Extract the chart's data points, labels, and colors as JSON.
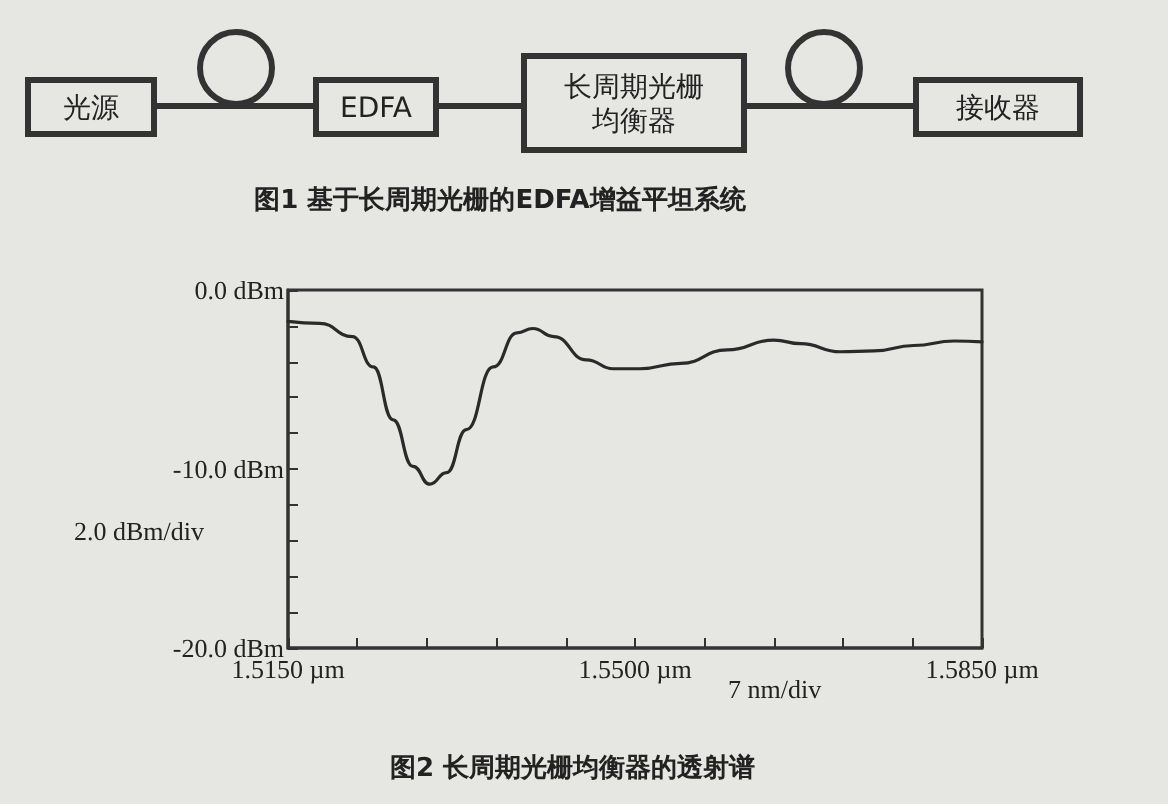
{
  "chart_data": [
    {
      "type": "other",
      "title": "图1 基于长周期光栅的EDFA增益平坦系统",
      "annotations": [
        "光源",
        "EDFA",
        "长周期光栅均衡器",
        "接收器"
      ]
    },
    {
      "type": "line",
      "title": "图2 长周期光栅均衡器的透射谱",
      "annotations": [
        "2.0 dBm/div",
        "7 nm/div"
      ],
      "x": [
        1.515,
        1.5182,
        1.5215,
        1.5236,
        1.5256,
        1.5276,
        1.5293,
        1.531,
        1.533,
        1.5357,
        1.5381,
        1.5397,
        1.5418,
        1.5451,
        1.5478,
        1.5505,
        1.5546,
        1.5593,
        1.564,
        1.5667,
        1.5707,
        1.5741,
        1.5781,
        1.5822,
        1.585
      ],
      "series": [
        {
          "color": "#2a2a2a",
          "values": [
            -1.75,
            -1.86,
            -2.6,
            -4.3,
            -7.25,
            -9.85,
            -10.85,
            -10.2,
            -7.8,
            -4.3,
            -2.4,
            -2.15,
            -2.6,
            -3.9,
            -4.4,
            -4.4,
            -4.1,
            -3.35,
            -2.8,
            -3.0,
            -3.45,
            -3.4,
            -3.1,
            -2.85,
            -2.9
          ]
        }
      ],
      "xlim": [
        1.515,
        1.585
      ],
      "xticks": [
        {
          "value": 1.515,
          "label": "1.5150 µm"
        },
        {
          "value": 1.522,
          "label": null
        },
        {
          "value": 1.529,
          "label": null
        },
        {
          "value": 1.536,
          "label": null
        },
        {
          "value": 1.543,
          "label": null
        },
        {
          "value": 1.55,
          "label": "1.5500 µm"
        },
        {
          "value": 1.557,
          "label": null
        },
        {
          "value": 1.564,
          "label": null
        },
        {
          "value": 1.571,
          "label": null
        },
        {
          "value": 1.578,
          "label": null
        },
        {
          "value": 1.585,
          "label": "1.5850 µm"
        }
      ],
      "ylim": [
        -20,
        0
      ],
      "yticks": [
        {
          "value": -20,
          "label": "-20.0 dBm"
        },
        {
          "value": -18,
          "label": null
        },
        {
          "value": -16,
          "label": null
        },
        {
          "value": -14,
          "label": null
        },
        {
          "value": -12,
          "label": null
        },
        {
          "value": -10,
          "label": "-10.0 dBm"
        },
        {
          "value": -8,
          "label": null
        },
        {
          "value": -6,
          "label": null
        },
        {
          "value": -4,
          "label": null
        },
        {
          "value": -2,
          "label": null
        },
        {
          "value": 0,
          "label": "0.0 dBm"
        }
      ],
      "marker": "none",
      "line_style": "solid"
    }
  ]
}
